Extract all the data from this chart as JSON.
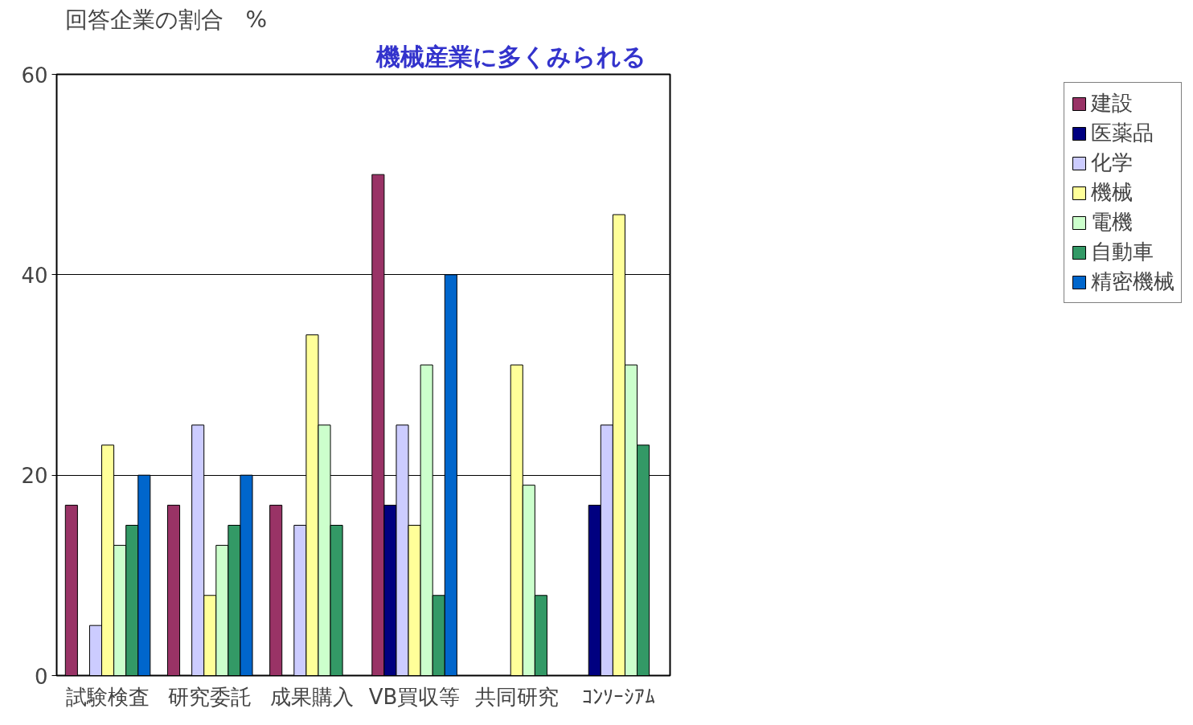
{
  "chart_data": {
    "type": "bar",
    "title": "機械産業に多くみられる",
    "ylabel": "回答企業の割合　%",
    "categories": [
      "試験検査",
      "研究委託",
      "成果購入",
      "VB買収等",
      "共同研究",
      "ｺﾝｿｰｼｱﾑ"
    ],
    "series": [
      {
        "name": "建設",
        "color": "#993366",
        "values": [
          17,
          17,
          17,
          50,
          null,
          null
        ]
      },
      {
        "name": "医薬品",
        "color": "#000080",
        "values": [
          null,
          null,
          null,
          17,
          null,
          17
        ]
      },
      {
        "name": "化学",
        "color": "#ccccff",
        "values": [
          5,
          25,
          15,
          25,
          null,
          25
        ]
      },
      {
        "name": "機械",
        "color": "#ffff99",
        "values": [
          23,
          8,
          34,
          15,
          31,
          46
        ]
      },
      {
        "name": "電機",
        "color": "#ccffcc",
        "values": [
          13,
          13,
          25,
          31,
          19,
          31
        ]
      },
      {
        "name": "自動車",
        "color": "#339966",
        "values": [
          15,
          15,
          15,
          8,
          8,
          23
        ]
      },
      {
        "name": "精密機械",
        "color": "#0066cc",
        "values": [
          20,
          20,
          null,
          40,
          null,
          null
        ]
      }
    ],
    "ylim": [
      0,
      60
    ],
    "yticks": [
      0,
      20,
      40,
      60
    ],
    "grid": "y",
    "legend": "right"
  }
}
